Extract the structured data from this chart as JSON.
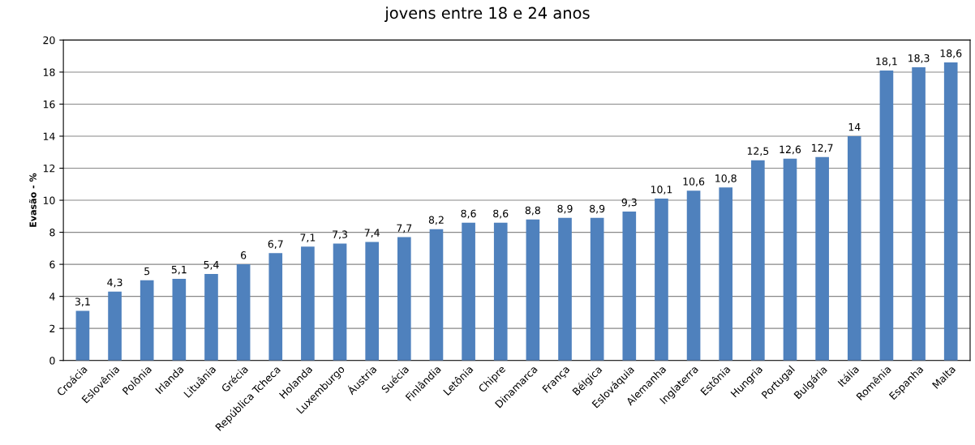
{
  "chart_data": {
    "type": "bar",
    "title": "jovens entre 18 e 24 anos",
    "ylabel": "Evasão - %",
    "categories": [
      "Croácia",
      "Eslovênia",
      "Polônia",
      "Irlanda",
      "Lituânia",
      "Grécia",
      "República Tcheca",
      "Holanda",
      "Luxemburgo",
      "Áustria",
      "Suécia",
      "Finlândia",
      "Letônia",
      "Chipre",
      "Dinamarca",
      "França",
      "Bélgica",
      "Eslováquia",
      "Alemanha",
      "Inglaterra",
      "Estônia",
      "Hungria",
      "Portugal",
      "Bulgária",
      "Itália",
      "Romênia",
      "Espanha",
      "Malta"
    ],
    "values": [
      3.1,
      4.3,
      5,
      5.1,
      5.4,
      6,
      6.7,
      7.1,
      7.3,
      7.4,
      7.7,
      8.2,
      8.6,
      8.6,
      8.8,
      8.9,
      8.9,
      9.3,
      10.1,
      10.6,
      10.8,
      12.5,
      12.6,
      12.7,
      14,
      18.1,
      18.3,
      18.6
    ],
    "value_labels": [
      "3,1",
      "4,3",
      "5",
      "5,1",
      "5,4",
      "6",
      "6,7",
      "7,1",
      "7,3",
      "7,4",
      "7,7",
      "8,2",
      "8,6",
      "8,6",
      "8,8",
      "8,9",
      "8,9",
      "9,3",
      "10,1",
      "10,6",
      "10,8",
      "12,5",
      "12,6",
      "12,7",
      "14",
      "18,1",
      "18,3",
      "18,6"
    ],
    "color": "#4f81bd",
    "ylim": [
      0,
      20
    ],
    "yticks": [
      0,
      2,
      4,
      6,
      8,
      10,
      12,
      14,
      16,
      18,
      20
    ],
    "grid": "y"
  }
}
